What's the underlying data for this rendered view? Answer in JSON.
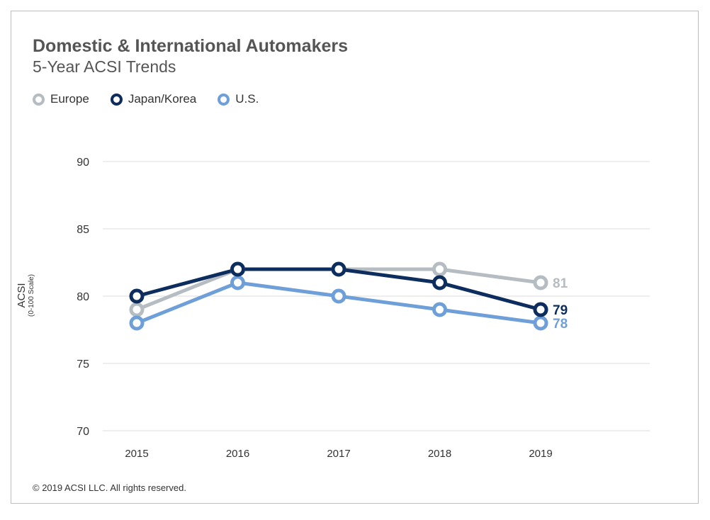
{
  "chart_data": {
    "type": "line",
    "title": "Domestic & International Automakers",
    "subtitle": "5-Year ACSI Trends",
    "ylabel": "ACSI",
    "ylabel_sub": "(0-100 Scale)",
    "xlabel": "",
    "categories": [
      "2015",
      "2016",
      "2017",
      "2018",
      "2019"
    ],
    "ylim": [
      70,
      90
    ],
    "yticks": [
      70,
      75,
      80,
      85,
      90
    ],
    "grid": true,
    "legend_position": "top-left",
    "series": [
      {
        "name": "Europe",
        "color": "#b5bcc2",
        "values": [
          79,
          82,
          82,
          82,
          81
        ],
        "end_label": "81"
      },
      {
        "name": "Japan/Korea",
        "color": "#0d2d5e",
        "values": [
          80,
          82,
          82,
          81,
          79
        ],
        "end_label": "79"
      },
      {
        "name": "U.S.",
        "color": "#6f9fd8",
        "values": [
          78,
          81,
          80,
          79,
          78
        ],
        "end_label": "78"
      }
    ]
  },
  "footer": "© 2019 ACSI LLC. All rights reserved."
}
